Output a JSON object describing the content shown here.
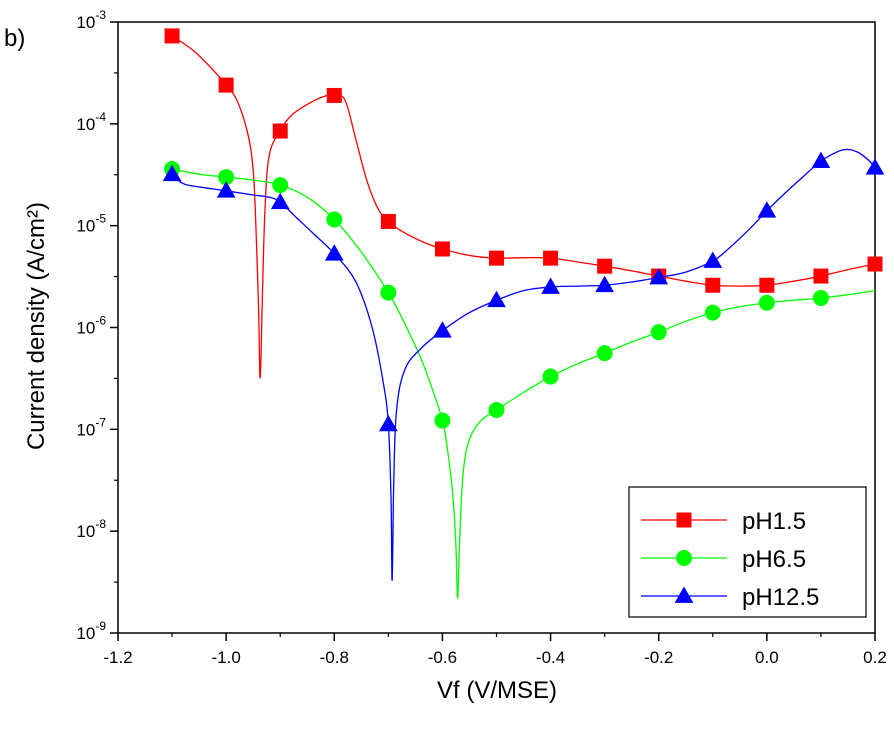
{
  "panel_label": "b)",
  "chart_data": {
    "type": "line",
    "xlabel": "Vf (V/MSE)",
    "ylabel": "Current density (A/cm²)",
    "xlim": [
      -1.2,
      0.2
    ],
    "ylim": [
      1e-09,
      0.001
    ],
    "yscale": "log",
    "grid": false,
    "legend_position": "bottom-right",
    "x_ticks": [
      "-1.2",
      "-1.0",
      "-0.8",
      "-0.6",
      "-0.4",
      "-0.2",
      "0.0",
      "0.2"
    ],
    "x_tick_values": [
      -1.2,
      -1.0,
      -0.8,
      -0.6,
      -0.4,
      -0.2,
      0.0,
      0.2
    ],
    "y_ticks": [
      {
        "base": "10",
        "exp": "-9",
        "value": 1e-09
      },
      {
        "base": "10",
        "exp": "-8",
        "value": 1e-08
      },
      {
        "base": "10",
        "exp": "-7",
        "value": 1e-07
      },
      {
        "base": "10",
        "exp": "-6",
        "value": 1e-06
      },
      {
        "base": "10",
        "exp": "-5",
        "value": 1e-05
      },
      {
        "base": "10",
        "exp": "-4",
        "value": 0.0001
      },
      {
        "base": "10",
        "exp": "-3",
        "value": 0.001
      }
    ],
    "series": [
      {
        "name": "pH1.5",
        "color": "#ff0000",
        "marker": "square",
        "markers": [
          [
            -1.1,
            0.00073
          ],
          [
            -1.0,
            0.00024
          ],
          [
            -0.9,
            8.5e-05
          ],
          [
            -0.8,
            0.00019
          ],
          [
            -0.7,
            1.1e-05
          ],
          [
            -0.6,
            5.9e-06
          ],
          [
            -0.5,
            4.8e-06
          ],
          [
            -0.4,
            4.8e-06
          ],
          [
            -0.3,
            4e-06
          ],
          [
            -0.2,
            3.2e-06
          ],
          [
            -0.1,
            2.6e-06
          ],
          [
            0.0,
            2.6e-06
          ],
          [
            0.1,
            3.2e-06
          ],
          [
            0.2,
            4.2e-06
          ]
        ],
        "curve": [
          [
            -1.1,
            0.00073
          ],
          [
            -1.06,
            0.00052
          ],
          [
            -1.02,
            0.00032
          ],
          [
            -1.0,
            0.00024
          ],
          [
            -0.98,
            0.00017
          ],
          [
            -0.96,
            8e-05
          ],
          [
            -0.95,
            3.5e-05
          ],
          [
            -0.945,
            1e-05
          ],
          [
            -0.94,
            1.5e-06
          ],
          [
            -0.937,
            3.2e-07
          ],
          [
            -0.933,
            2e-06
          ],
          [
            -0.928,
            1.5e-05
          ],
          [
            -0.92,
            5e-05
          ],
          [
            -0.9,
            8.5e-05
          ],
          [
            -0.88,
            0.00012
          ],
          [
            -0.85,
            0.000155
          ],
          [
            -0.82,
            0.000185
          ],
          [
            -0.8,
            0.00019
          ],
          [
            -0.78,
            0.00017
          ],
          [
            -0.76,
            7e-05
          ],
          [
            -0.74,
            2.8e-05
          ],
          [
            -0.72,
            1.5e-05
          ],
          [
            -0.7,
            1.1e-05
          ],
          [
            -0.67,
            8.5e-06
          ],
          [
            -0.63,
            6.7e-06
          ],
          [
            -0.6,
            5.9e-06
          ],
          [
            -0.55,
            5.1e-06
          ],
          [
            -0.5,
            4.8e-06
          ],
          [
            -0.45,
            4.85e-06
          ],
          [
            -0.4,
            4.8e-06
          ],
          [
            -0.35,
            4.4e-06
          ],
          [
            -0.3,
            4e-06
          ],
          [
            -0.25,
            3.6e-06
          ],
          [
            -0.2,
            3.2e-06
          ],
          [
            -0.15,
            2.85e-06
          ],
          [
            -0.1,
            2.6e-06
          ],
          [
            -0.05,
            2.55e-06
          ],
          [
            0.0,
            2.6e-06
          ],
          [
            0.05,
            2.85e-06
          ],
          [
            0.1,
            3.2e-06
          ],
          [
            0.15,
            3.7e-06
          ],
          [
            0.2,
            4.2e-06
          ]
        ]
      },
      {
        "name": "pH6.5",
        "color": "#00ff00",
        "marker": "circle",
        "markers": [
          [
            -1.1,
            3.6e-05
          ],
          [
            -1.0,
            3e-05
          ],
          [
            -0.9,
            2.5e-05
          ],
          [
            -0.8,
            1.15e-05
          ],
          [
            -0.7,
            2.2e-06
          ],
          [
            -0.6,
            1.22e-07
          ],
          [
            -0.5,
            1.55e-07
          ],
          [
            -0.4,
            3.3e-07
          ],
          [
            -0.3,
            5.6e-07
          ],
          [
            -0.2,
            9e-07
          ],
          [
            -0.1,
            1.4e-06
          ],
          [
            0.0,
            1.75e-06
          ],
          [
            0.1,
            1.95e-06
          ]
        ],
        "curve": [
          [
            -1.1,
            3.6e-05
          ],
          [
            -1.05,
            3.2e-05
          ],
          [
            -1.0,
            3e-05
          ],
          [
            -0.95,
            2.8e-05
          ],
          [
            -0.9,
            2.5e-05
          ],
          [
            -0.85,
            1.9e-05
          ],
          [
            -0.8,
            1.15e-05
          ],
          [
            -0.75,
            5.5e-06
          ],
          [
            -0.7,
            2.2e-06
          ],
          [
            -0.67,
            1.1e-06
          ],
          [
            -0.64,
            5e-07
          ],
          [
            -0.62,
            2.6e-07
          ],
          [
            -0.6,
            1.22e-07
          ],
          [
            -0.59,
            6e-08
          ],
          [
            -0.58,
            2e-08
          ],
          [
            -0.575,
            7e-09
          ],
          [
            -0.572,
            2.2e-09
          ],
          [
            -0.569,
            6e-09
          ],
          [
            -0.565,
            2e-08
          ],
          [
            -0.56,
            4.5e-08
          ],
          [
            -0.55,
            8e-08
          ],
          [
            -0.53,
            1.2e-07
          ],
          [
            -0.5,
            1.55e-07
          ],
          [
            -0.45,
            2.3e-07
          ],
          [
            -0.4,
            3.3e-07
          ],
          [
            -0.35,
            4.4e-07
          ],
          [
            -0.3,
            5.6e-07
          ],
          [
            -0.25,
            7.2e-07
          ],
          [
            -0.2,
            9e-07
          ],
          [
            -0.15,
            1.15e-06
          ],
          [
            -0.1,
            1.4e-06
          ],
          [
            -0.05,
            1.6e-06
          ],
          [
            0.0,
            1.75e-06
          ],
          [
            0.05,
            1.85e-06
          ],
          [
            0.1,
            1.95e-06
          ],
          [
            0.15,
            2.1e-06
          ],
          [
            0.2,
            2.3e-06
          ]
        ]
      },
      {
        "name": "pH12.5",
        "color": "#0000ff",
        "marker": "triangle",
        "markers": [
          [
            -1.1,
            3.2e-05
          ],
          [
            -1.0,
            2.2e-05
          ],
          [
            -0.9,
            1.7e-05
          ],
          [
            -0.8,
            5.3e-06
          ],
          [
            -0.7,
            1.12e-07
          ],
          [
            -0.6,
            9.3e-07
          ],
          [
            -0.5,
            1.85e-06
          ],
          [
            -0.4,
            2.5e-06
          ],
          [
            -0.3,
            2.6e-06
          ],
          [
            -0.2,
            3.1e-06
          ],
          [
            -0.1,
            4.5e-06
          ],
          [
            0.0,
            1.4e-05
          ],
          [
            0.1,
            4.3e-05
          ],
          [
            0.2,
            3.7e-05
          ]
        ],
        "curve": [
          [
            -1.1,
            3.2e-05
          ],
          [
            -1.08,
            2.6e-05
          ],
          [
            -1.05,
            2.4e-05
          ],
          [
            -1.0,
            2.2e-05
          ],
          [
            -0.95,
            2e-05
          ],
          [
            -0.92,
            1.9e-05
          ],
          [
            -0.9,
            1.7e-05
          ],
          [
            -0.87,
            1.2e-05
          ],
          [
            -0.84,
            8.5e-06
          ],
          [
            -0.8,
            5.3e-06
          ],
          [
            -0.76,
            2.8e-06
          ],
          [
            -0.73,
            1e-06
          ],
          [
            -0.71,
            3e-07
          ],
          [
            -0.7,
            1.12e-07
          ],
          [
            -0.695,
            2e-08
          ],
          [
            -0.693,
            3.3e-09
          ],
          [
            -0.69,
            3e-08
          ],
          [
            -0.685,
            1.5e-07
          ],
          [
            -0.67,
            3.8e-07
          ],
          [
            -0.64,
            6.2e-07
          ],
          [
            -0.6,
            9.3e-07
          ],
          [
            -0.55,
            1.4e-06
          ],
          [
            -0.5,
            1.85e-06
          ],
          [
            -0.45,
            2.3e-06
          ],
          [
            -0.4,
            2.5e-06
          ],
          [
            -0.35,
            2.55e-06
          ],
          [
            -0.3,
            2.6e-06
          ],
          [
            -0.25,
            2.8e-06
          ],
          [
            -0.2,
            3.1e-06
          ],
          [
            -0.15,
            3.5e-06
          ],
          [
            -0.1,
            4.5e-06
          ],
          [
            -0.07,
            6e-06
          ],
          [
            -0.03,
            9.5e-06
          ],
          [
            0.0,
            1.4e-05
          ],
          [
            0.03,
            2e-05
          ],
          [
            0.06,
            2.8e-05
          ],
          [
            0.1,
            4.3e-05
          ],
          [
            0.13,
            5.3e-05
          ],
          [
            0.15,
            5.6e-05
          ],
          [
            0.17,
            5.2e-05
          ],
          [
            0.19,
            4.3e-05
          ],
          [
            0.2,
            3.7e-05
          ]
        ]
      }
    ]
  }
}
